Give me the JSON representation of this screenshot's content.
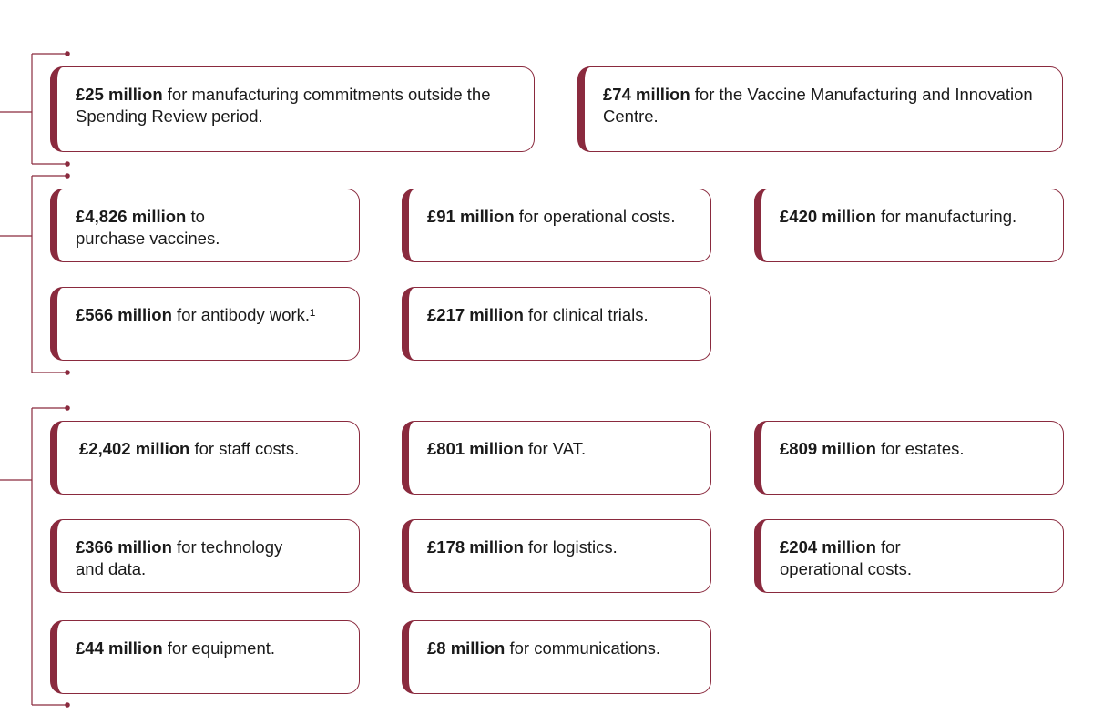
{
  "accent_color": "#8a2a3e",
  "groups": [
    {
      "cards": [
        {
          "amount": "£25 million",
          "text": " for manufacturing commitments outside the Spending Review period."
        },
        {
          "amount": "£74 million",
          "text": " for the Vaccine Manufacturing and Innovation Centre."
        }
      ]
    },
    {
      "cards": [
        {
          "amount": "£4,826 million",
          "text": " to purchase vaccines."
        },
        {
          "amount": "£91 million",
          "text": " for operational costs."
        },
        {
          "amount": "£420 million",
          "text": " for manufacturing."
        },
        {
          "amount": "£566 million",
          "text": " for antibody work.¹"
        },
        {
          "amount": "£217 million",
          "text": " for clinical trials."
        }
      ]
    },
    {
      "cards": [
        {
          "amount": "£2,402 million",
          "text": " for staff costs."
        },
        {
          "amount": "£801 million",
          "text": " for VAT."
        },
        {
          "amount": "£809 million",
          "text": " for estates."
        },
        {
          "amount": "£366 million",
          "text": " for technology and data."
        },
        {
          "amount": "£178 million",
          "text": " for logistics."
        },
        {
          "amount": "£204 million",
          "text": " for operational costs."
        },
        {
          "amount": "£44 million",
          "text": " for equipment."
        },
        {
          "amount": "£8 million",
          "text": " for communications."
        }
      ]
    }
  ]
}
